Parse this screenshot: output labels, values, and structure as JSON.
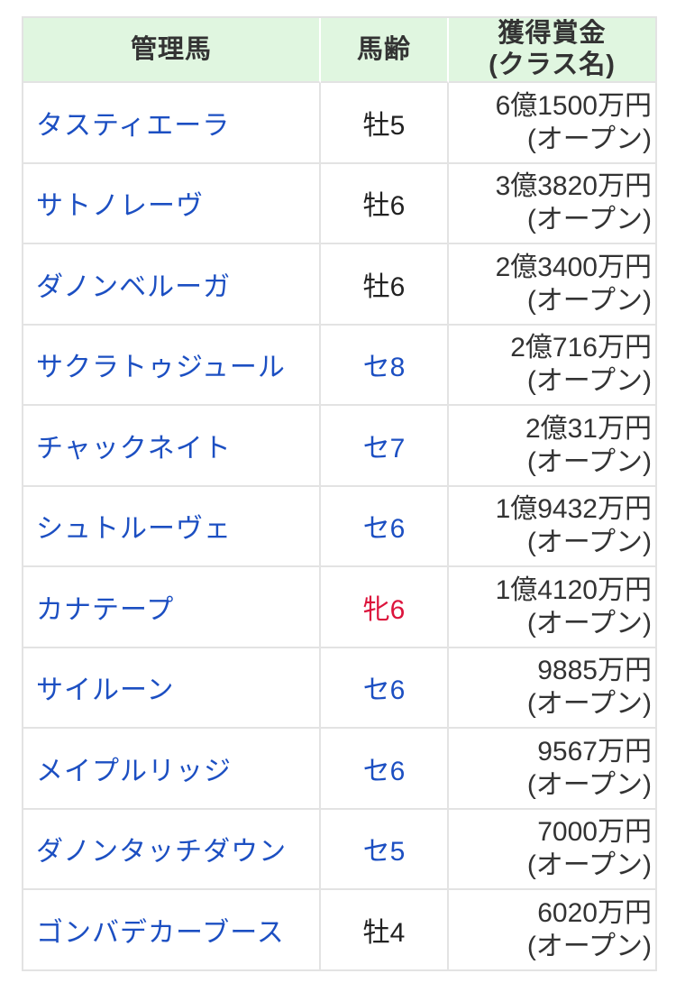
{
  "page": {
    "background": "#ffffff"
  },
  "colors": {
    "header_bg": "#e0f6e0",
    "header_text": "#333333",
    "link_blue": "#1c4fc2",
    "age_black": "#222222",
    "age_blue": "#1c4fc2",
    "age_red": "#dc143c",
    "prize_text": "#333333",
    "border_gray": "#e3e3e3",
    "header_divider": "#ffffff"
  },
  "table": {
    "headers": {
      "horse": "管理馬",
      "age": "馬齢",
      "prize_line1": "獲得賞金",
      "prize_line2": "(クラス名)"
    },
    "rows": [
      {
        "name": "タスティエーラ",
        "age": "牡5",
        "age_color": "black",
        "prize": "6億1500万円",
        "class_name": "(オープン)"
      },
      {
        "name": "サトノレーヴ",
        "age": "牡6",
        "age_color": "black",
        "prize": "3億3820万円",
        "class_name": "(オープン)"
      },
      {
        "name": "ダノンベルーガ",
        "age": "牡6",
        "age_color": "black",
        "prize": "2億3400万円",
        "class_name": "(オープン)"
      },
      {
        "name": "サクラトゥジュール",
        "age": "セ8",
        "age_color": "blue",
        "prize": "2億716万円",
        "class_name": "(オープン)"
      },
      {
        "name": "チャックネイト",
        "age": "セ7",
        "age_color": "blue",
        "prize": "2億31万円",
        "class_name": "(オープン)"
      },
      {
        "name": "シュトルーヴェ",
        "age": "セ6",
        "age_color": "blue",
        "prize": "1億9432万円",
        "class_name": "(オープン)"
      },
      {
        "name": "カナテープ",
        "age": "牝6",
        "age_color": "red",
        "prize": "1億4120万円",
        "class_name": "(オープン)"
      },
      {
        "name": "サイルーン",
        "age": "セ6",
        "age_color": "blue",
        "prize": "9885万円",
        "class_name": "(オープン)"
      },
      {
        "name": "メイプルリッジ",
        "age": "セ6",
        "age_color": "blue",
        "prize": "9567万円",
        "class_name": "(オープン)"
      },
      {
        "name": "ダノンタッチダウン",
        "age": "セ5",
        "age_color": "blue",
        "prize": "7000万円",
        "class_name": "(オープン)"
      },
      {
        "name": "ゴンバデカーブース",
        "age": "牡4",
        "age_color": "black",
        "prize": "6020万円",
        "class_name": "(オープン)"
      }
    ]
  }
}
